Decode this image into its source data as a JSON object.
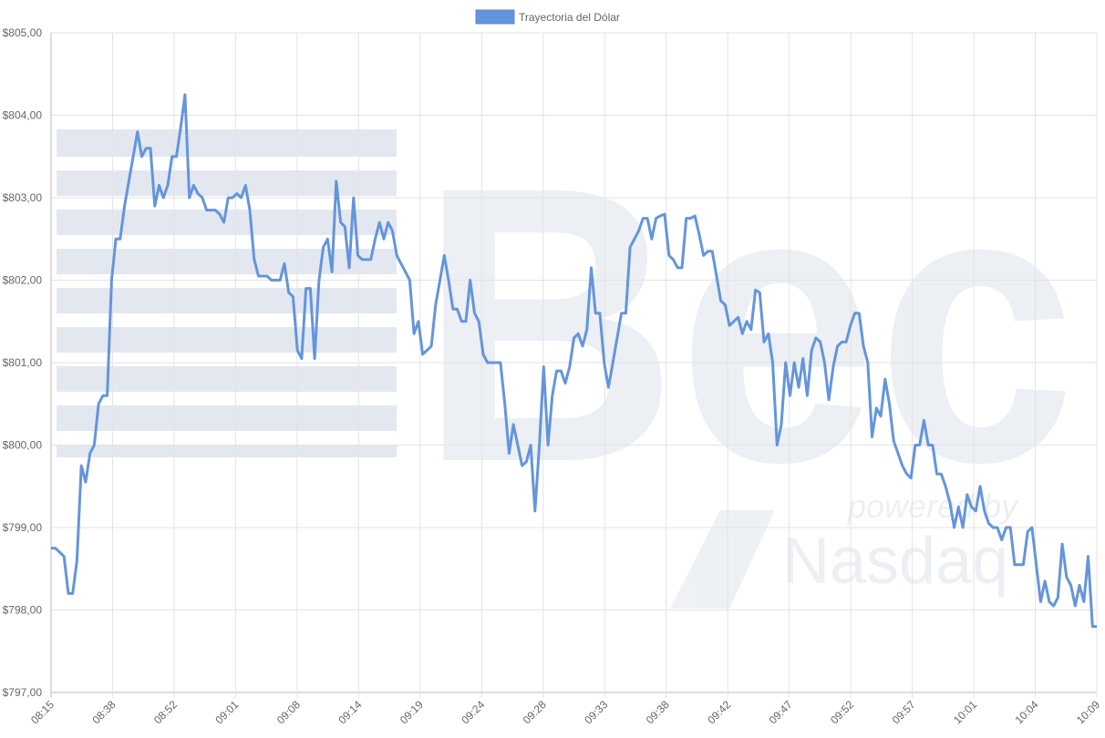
{
  "chart_data": {
    "type": "line",
    "title": "",
    "xlabel": "",
    "ylabel": "",
    "legend": {
      "placement": "top-center",
      "label": "Trayectoria del Dólar"
    },
    "ylim": [
      797,
      805
    ],
    "grid": true,
    "y_ticks": [
      "$797,00",
      "$798,00",
      "$799,00",
      "$800,00",
      "$801,00",
      "$802,00",
      "$803,00",
      "$804,00",
      "$805,00"
    ],
    "x_ticks": [
      "08:15",
      "08:38",
      "08:52",
      "09:01",
      "09:08",
      "09:14",
      "09:19",
      "09:24",
      "09:28",
      "09:33",
      "09:38",
      "09:42",
      "09:47",
      "09:52",
      "09:57",
      "10:01",
      "10:04",
      "10:09"
    ],
    "series": [
      {
        "name": "Trayectoria del Dólar",
        "color": "#6495dc",
        "values": [
          798.75,
          798.75,
          798.7,
          798.65,
          798.2,
          798.2,
          798.6,
          799.75,
          799.55,
          799.9,
          800.0,
          800.5,
          800.6,
          800.6,
          802.0,
          802.5,
          802.5,
          802.9,
          803.2,
          803.5,
          803.8,
          803.5,
          803.6,
          803.6,
          802.9,
          803.15,
          803.0,
          803.15,
          803.5,
          803.5,
          803.85,
          804.25,
          803.0,
          803.15,
          803.05,
          803.0,
          802.85,
          802.85,
          802.85,
          802.8,
          802.7,
          803.0,
          803.0,
          803.05,
          803.0,
          803.15,
          802.85,
          802.25,
          802.05,
          802.05,
          802.05,
          802.0,
          802.0,
          802.0,
          802.2,
          801.85,
          801.8,
          801.15,
          801.05,
          801.9,
          801.9,
          801.05,
          802.0,
          802.4,
          802.5,
          802.1,
          803.2,
          802.7,
          802.65,
          802.15,
          803.0,
          802.3,
          802.25,
          802.25,
          802.25,
          802.5,
          802.7,
          802.5,
          802.7,
          802.6,
          802.3,
          802.2,
          802.1,
          802.0,
          801.35,
          801.5,
          801.1,
          801.15,
          801.2,
          801.7,
          802.0,
          802.3,
          802.0,
          801.65,
          801.65,
          801.5,
          801.5,
          802.0,
          801.6,
          801.5,
          801.1,
          801.0,
          801.0,
          801.0,
          801.0,
          800.5,
          799.9,
          800.25,
          800.0,
          799.75,
          799.8,
          800.0,
          799.2,
          800.0,
          800.95,
          800.0,
          800.6,
          800.9,
          800.9,
          800.75,
          800.95,
          801.3,
          801.35,
          801.2,
          801.4,
          802.15,
          801.6,
          801.6,
          801.0,
          800.7,
          801.0,
          801.3,
          801.6,
          801.6,
          802.4,
          802.5,
          802.6,
          802.75,
          802.75,
          802.5,
          802.75,
          802.78,
          802.8,
          802.3,
          802.25,
          802.15,
          802.15,
          802.75,
          802.75,
          802.78,
          802.55,
          802.3,
          802.35,
          802.35,
          802.05,
          801.75,
          801.7,
          801.45,
          801.5,
          801.55,
          801.35,
          801.5,
          801.4,
          801.88,
          801.85,
          801.25,
          801.35,
          801.0,
          800.0,
          800.25,
          801.0,
          800.6,
          801.0,
          800.7,
          801.05,
          800.6,
          801.15,
          801.3,
          801.25,
          801.0,
          800.55,
          800.95,
          801.2,
          801.25,
          801.25,
          801.45,
          801.6,
          801.6,
          801.2,
          801.0,
          800.1,
          800.45,
          800.35,
          800.8,
          800.5,
          800.05,
          799.9,
          799.75,
          799.65,
          799.6,
          800.0,
          800.0,
          800.3,
          800.0,
          800.0,
          799.65,
          799.65,
          799.5,
          799.3,
          799.0,
          799.25,
          799.0,
          799.4,
          799.25,
          799.2,
          799.5,
          799.2,
          799.05,
          799.0,
          799.0,
          798.85,
          799.0,
          799.0,
          798.55,
          798.55,
          798.55,
          798.95,
          799.0,
          798.55,
          798.1,
          798.35,
          798.1,
          798.05,
          798.15,
          798.8,
          798.4,
          798.3,
          798.05,
          798.3,
          798.1,
          798.65,
          797.8,
          797.8
        ]
      }
    ]
  },
  "watermark": {
    "logo": "Bec",
    "sub1": "powered by",
    "sub2": "Nasdaq"
  }
}
